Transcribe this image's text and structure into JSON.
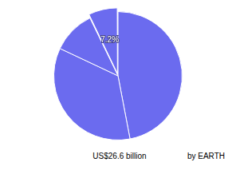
{
  "chart_data": {
    "type": "pie",
    "title": "US$26.6 billion",
    "annotations": [
      "by EARTH"
    ],
    "values": [
      47,
      35,
      10.8,
      7.2
    ],
    "value_labels": [
      null,
      null,
      null,
      "7.2%"
    ],
    "color": "#6b6bef",
    "data_labels": true
  }
}
